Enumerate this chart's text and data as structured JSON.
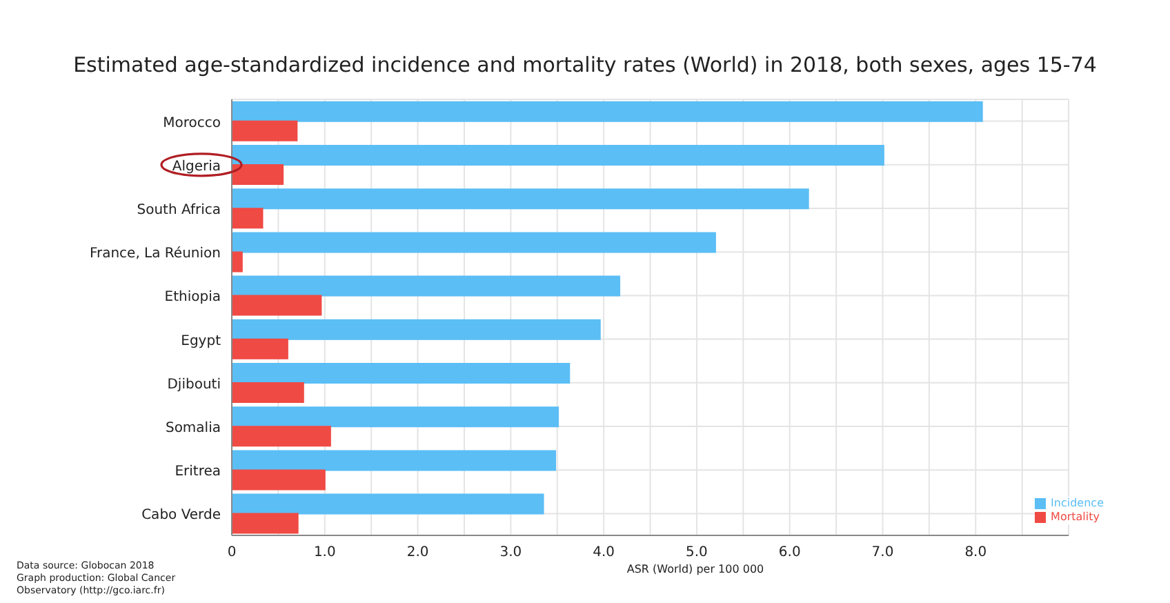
{
  "chart_data": {
    "type": "bar",
    "orientation": "horizontal",
    "title": "Estimated age-standardized incidence and mortality rates (World) in 2018, both sexes, ages 15-74",
    "xlabel": "ASR (World) per 100 000",
    "categories": [
      "Morocco",
      "Algeria",
      "South Africa",
      "France, La Réunion",
      "Ethiopia",
      "Egypt",
      "Djibouti",
      "Somalia",
      "Eritrea",
      "Cabo Verde"
    ],
    "series": [
      {
        "name": "Incidence",
        "color": "#5bbef5",
        "values": [
          8.07,
          7.01,
          6.2,
          5.2,
          4.17,
          3.96,
          3.63,
          3.51,
          3.48,
          3.35
        ]
      },
      {
        "name": "Mortality",
        "color": "#f04a44",
        "values": [
          0.7,
          0.55,
          0.33,
          0.11,
          0.96,
          0.6,
          0.77,
          1.06,
          1.0,
          0.71
        ]
      }
    ],
    "xlim": [
      0,
      9
    ],
    "xticks": [
      0,
      {
        "value": 0.5,
        "label": null
      },
      {
        "value": 1,
        "label": "1.0"
      },
      {
        "value": 1.5,
        "label": null
      },
      {
        "value": 2,
        "label": "2.0"
      },
      {
        "value": 2.5,
        "label": null
      },
      {
        "value": 3,
        "label": "3.0"
      },
      {
        "value": 3.5,
        "label": null
      },
      {
        "value": 4,
        "label": "4.0"
      },
      {
        "value": 4.5,
        "label": null
      },
      {
        "value": 5,
        "label": "5.0"
      },
      {
        "value": 5.5,
        "label": null
      },
      {
        "value": 6,
        "label": "6.0"
      },
      {
        "value": 6.5,
        "label": null
      },
      {
        "value": 7,
        "label": "7.0"
      },
      {
        "value": 7.5,
        "label": null
      },
      {
        "value": 8,
        "label": "8.0"
      },
      {
        "value": 8.5,
        "label": null
      }
    ],
    "grid": true,
    "legend": "bottom right",
    "annotations": [
      "Data source: Globocan 2018",
      "Graph production: Global Cancer Observatory (http://gco.iarc.fr)"
    ]
  }
}
